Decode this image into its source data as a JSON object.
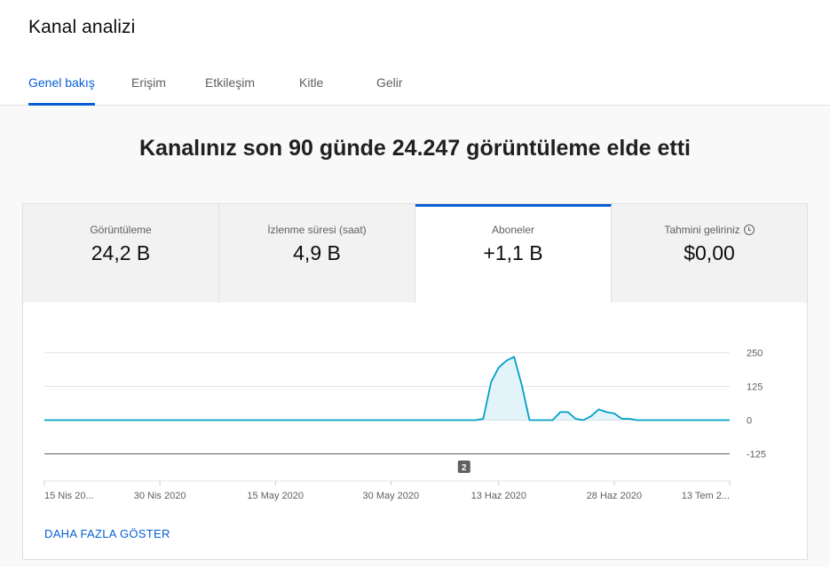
{
  "header": {
    "title": "Kanal analizi",
    "tabs": [
      {
        "label": "Genel bakış",
        "active": true
      },
      {
        "label": "Erişim",
        "active": false
      },
      {
        "label": "Etkileşim",
        "active": false
      },
      {
        "label": "Kitle",
        "active": false
      },
      {
        "label": "Gelir",
        "active": false
      }
    ]
  },
  "main": {
    "headline": "Kanalınız son 90 günde 24.247 görüntüleme elde etti",
    "metrics": [
      {
        "label": "Görüntüleme",
        "value": "24,2 B"
      },
      {
        "label": "İzlenme süresi (saat)",
        "value": "4,9 B"
      },
      {
        "label": "Aboneler",
        "value": "+1,1 B",
        "selected": true
      },
      {
        "label": "Tahmini geliriniz",
        "value": "$0,00",
        "icon": "clock-icon"
      }
    ],
    "show_more_label": "DAHA FAZLA GÖSTER"
  },
  "colors": {
    "accent": "#065fd4",
    "line": "#00a0c8",
    "fill": "#e3f3fa"
  },
  "chart_data": {
    "type": "area",
    "y_ticks": [
      "250",
      "125",
      "0",
      "-125"
    ],
    "ylim": [
      -125,
      250
    ],
    "x_labels": [
      "15 Nis 20...",
      "30 Nis 2020",
      "15 May 2020",
      "30 May 2020",
      "13 Haz 2020",
      "28 Haz 2020",
      "13 Tem 2..."
    ],
    "marker_label": "2",
    "grid": true,
    "series": [
      {
        "x": [
          0,
          1,
          2,
          3,
          4,
          5,
          6,
          7,
          8,
          9,
          10,
          11,
          12,
          13,
          14,
          15,
          16,
          17,
          18,
          19,
          20,
          21,
          22,
          23,
          24,
          25,
          26,
          27,
          28,
          29,
          30,
          31,
          32,
          33,
          34,
          35,
          36,
          37,
          38,
          39,
          40,
          41,
          42,
          43,
          44,
          45,
          46,
          47,
          48,
          49,
          50,
          51,
          52,
          53,
          54,
          55,
          56,
          57,
          58,
          59,
          60,
          61,
          62,
          63,
          64,
          65,
          66,
          67,
          68,
          69,
          70,
          71,
          72,
          73,
          74,
          75,
          76,
          77,
          78,
          79,
          80,
          81,
          82,
          83,
          84,
          85,
          86,
          87,
          88,
          89
        ],
        "values": [
          0,
          0,
          0,
          0,
          0,
          0,
          0,
          0,
          0,
          0,
          0,
          0,
          0,
          0,
          0,
          0,
          0,
          0,
          0,
          0,
          0,
          0,
          0,
          0,
          0,
          0,
          0,
          0,
          0,
          0,
          0,
          0,
          0,
          0,
          0,
          0,
          0,
          0,
          0,
          0,
          0,
          0,
          0,
          0,
          0,
          0,
          0,
          0,
          0,
          0,
          0,
          0,
          0,
          0,
          0,
          0,
          0,
          5,
          140,
          195,
          220,
          235,
          130,
          0,
          0,
          0,
          0,
          30,
          30,
          5,
          0,
          15,
          40,
          30,
          25,
          5,
          5,
          0,
          0,
          0,
          0,
          0,
          0,
          0,
          0,
          0,
          0,
          0,
          0,
          0
        ]
      }
    ]
  }
}
